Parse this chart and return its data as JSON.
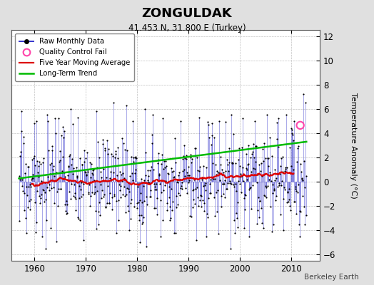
{
  "title": "ZONGULDAK",
  "subtitle": "41.453 N, 31.800 E (Turkey)",
  "ylabel": "Temperature Anomaly (°C)",
  "credit": "Berkeley Earth",
  "xlim": [
    1955.5,
    2015.5
  ],
  "ylim": [
    -6.5,
    12.5
  ],
  "yticks": [
    -6,
    -4,
    -2,
    0,
    2,
    4,
    6,
    8,
    10,
    12
  ],
  "xticks": [
    1960,
    1970,
    1980,
    1990,
    2000,
    2010
  ],
  "bg_color": "#e0e0e0",
  "plot_bg_color": "#ffffff",
  "raw_line_color": "#3333cc",
  "raw_dot_color": "#000000",
  "moving_avg_color": "#dd0000",
  "trend_color": "#00bb00",
  "qc_fail_color": "#ff44aa",
  "seed": 17,
  "n_months": 672,
  "start_year": 1957.0,
  "end_year": 2012.9,
  "qc_fail_x": 2011.7,
  "qc_fail_y": 4.65,
  "trend_intercept": 0.28,
  "trend_slope": 0.0045
}
